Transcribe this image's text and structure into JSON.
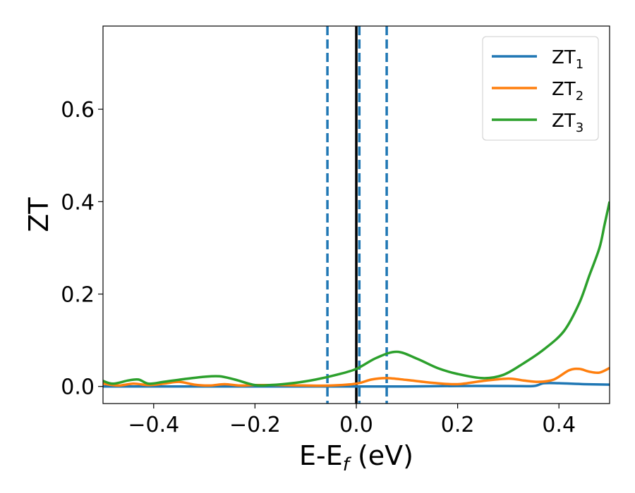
{
  "chart_data": {
    "type": "line",
    "xlabel": "E-E",
    "xlabel_sub": "f",
    "xlabel_unit": " (eV)",
    "ylabel": "ZT",
    "xlim": [
      -0.5,
      0.5
    ],
    "ylim": [
      -0.037,
      0.78
    ],
    "grid": false,
    "legend_position": "top-right",
    "x_ticks": [
      {
        "value": -0.4,
        "label": "−0.4"
      },
      {
        "value": -0.2,
        "label": "−0.2"
      },
      {
        "value": 0.0,
        "label": "0.0"
      },
      {
        "value": 0.2,
        "label": "0.2"
      },
      {
        "value": 0.4,
        "label": "0.4"
      }
    ],
    "y_ticks": [
      {
        "value": 0.0,
        "label": "0.0"
      },
      {
        "value": 0.2,
        "label": "0.2"
      },
      {
        "value": 0.4,
        "label": "0.4"
      },
      {
        "value": 0.6,
        "label": "0.6"
      }
    ],
    "vertical_lines": [
      {
        "x": -0.057,
        "color": "#1f77b4",
        "style": "dashed"
      },
      {
        "x": 0.0,
        "color": "#000000",
        "style": "solid"
      },
      {
        "x": 0.006,
        "color": "#1f77b4",
        "style": "dashed"
      },
      {
        "x": 0.06,
        "color": "#1f77b4",
        "style": "dashed"
      }
    ],
    "series": [
      {
        "name": "ZT",
        "name_sub": "1",
        "color": "#1f77b4",
        "x": [
          -0.5,
          -0.4,
          -0.3,
          -0.2,
          -0.1,
          0.0,
          0.1,
          0.2,
          0.3,
          0.35,
          0.37,
          0.4,
          0.45,
          0.5
        ],
        "y": [
          0.0,
          0.0,
          0.0,
          0.0,
          0.0,
          0.0,
          0.0,
          0.001,
          0.001,
          0.001,
          0.007,
          0.007,
          0.005,
          0.004
        ]
      },
      {
        "name": "ZT",
        "name_sub": "2",
        "color": "#ff7f0e",
        "x": [
          -0.5,
          -0.47,
          -0.44,
          -0.41,
          -0.38,
          -0.35,
          -0.32,
          -0.29,
          -0.26,
          -0.23,
          -0.2,
          -0.15,
          -0.1,
          -0.05,
          0.0,
          0.03,
          0.06,
          0.1,
          0.15,
          0.2,
          0.25,
          0.3,
          0.33,
          0.36,
          0.39,
          0.42,
          0.44,
          0.46,
          0.48,
          0.5
        ],
        "y": [
          0.006,
          0.002,
          0.006,
          0.003,
          0.006,
          0.01,
          0.004,
          0.002,
          0.005,
          0.002,
          0.003,
          0.003,
          0.002,
          0.002,
          0.006,
          0.015,
          0.018,
          0.014,
          0.008,
          0.005,
          0.012,
          0.017,
          0.013,
          0.01,
          0.015,
          0.035,
          0.038,
          0.032,
          0.03,
          0.04
        ]
      },
      {
        "name": "ZT",
        "name_sub": "3",
        "color": "#2ca02c",
        "x": [
          -0.5,
          -0.48,
          -0.45,
          -0.43,
          -0.41,
          -0.38,
          -0.34,
          -0.3,
          -0.27,
          -0.24,
          -0.2,
          -0.17,
          -0.12,
          -0.08,
          -0.04,
          0.0,
          0.04,
          0.08,
          0.12,
          0.16,
          0.2,
          0.25,
          0.29,
          0.33,
          0.37,
          0.41,
          0.44,
          0.46,
          0.48,
          0.49,
          0.5
        ],
        "y": [
          0.012,
          0.006,
          0.013,
          0.015,
          0.006,
          0.01,
          0.016,
          0.021,
          0.022,
          0.015,
          0.003,
          0.003,
          0.008,
          0.015,
          0.025,
          0.038,
          0.062,
          0.075,
          0.06,
          0.04,
          0.027,
          0.018,
          0.025,
          0.05,
          0.08,
          0.12,
          0.18,
          0.24,
          0.3,
          0.35,
          0.4
        ]
      }
    ]
  }
}
